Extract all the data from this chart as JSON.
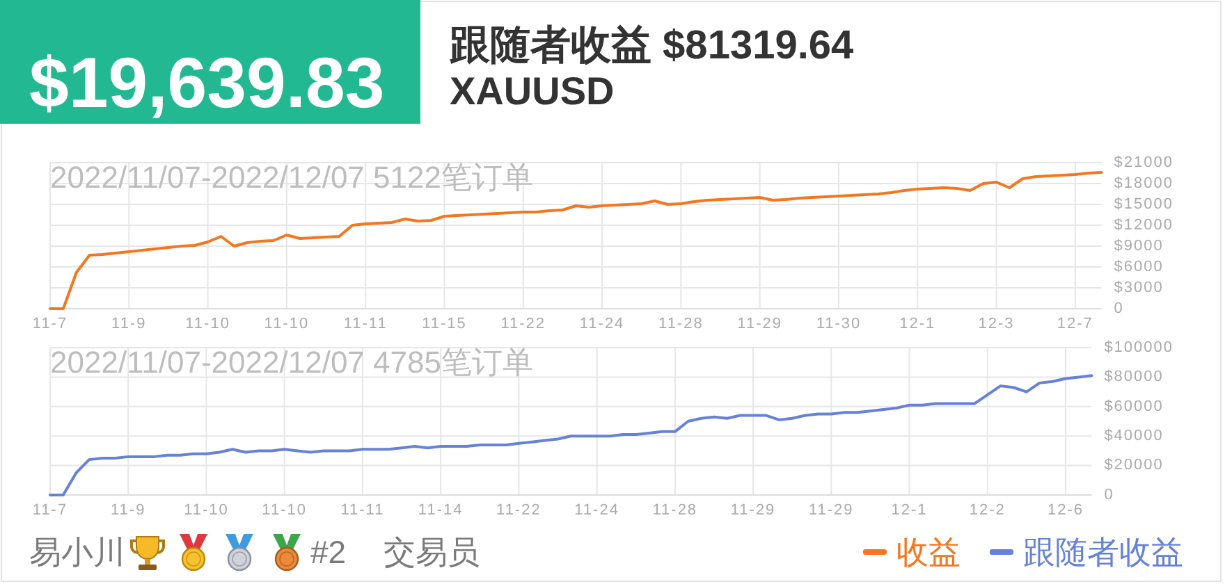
{
  "chart_data": [
    {
      "type": "other",
      "title": "$19,639.83",
      "subtitle": "跟随者收益 $81319.64",
      "annotations": [
        "XAUUSD"
      ]
    },
    {
      "type": "line",
      "title": "2022/11/07-2022/12/07 5122笔订单",
      "categories": [
        "11-7",
        null,
        null,
        null,
        null,
        null,
        "11-9",
        null,
        null,
        null,
        null,
        null,
        "11-10",
        null,
        null,
        null,
        null,
        null,
        "11-10",
        null,
        null,
        null,
        null,
        null,
        "11-11",
        null,
        null,
        null,
        null,
        null,
        "11-15",
        null,
        null,
        null,
        null,
        null,
        "11-22",
        null,
        null,
        null,
        null,
        null,
        "11-24",
        null,
        null,
        null,
        null,
        null,
        "11-28",
        null,
        null,
        null,
        null,
        null,
        "11-29",
        null,
        null,
        null,
        null,
        null,
        "11-30",
        null,
        null,
        null,
        null,
        null,
        "12-1",
        null,
        null,
        null,
        null,
        null,
        "12-3",
        null,
        null,
        null,
        null,
        null,
        "12-7",
        null,
        null
      ],
      "series": [
        {
          "name": "收益",
          "color": "#f4761f",
          "values": [
            0,
            0,
            5200,
            7700,
            7800,
            8000,
            8200,
            8400,
            8600,
            8800,
            9000,
            9100,
            9600,
            10400,
            9000,
            9500,
            9700,
            9800,
            10600,
            10100,
            10200,
            10300,
            10400,
            12000,
            12200,
            12300,
            12400,
            12900,
            12600,
            12700,
            13300,
            13400,
            13500,
            13600,
            13700,
            13800,
            13900,
            13900,
            14100,
            14200,
            14800,
            14600,
            14800,
            14900,
            15000,
            15100,
            15500,
            15000,
            15100,
            15400,
            15600,
            15700,
            15800,
            15900,
            16000,
            15600,
            15700,
            15900,
            16000,
            16100,
            16200,
            16300,
            16400,
            16500,
            16700,
            17000,
            17200,
            17300,
            17400,
            17300,
            17000,
            18000,
            18200,
            17400,
            18700,
            19000,
            19100,
            19200,
            19300,
            19500,
            19600
          ]
        }
      ],
      "ylim": [
        0,
        21000
      ],
      "yticks": [
        0,
        {
          "value": 3000,
          "label": "$3000"
        },
        {
          "value": 6000,
          "label": "$6000"
        },
        {
          "value": 9000,
          "label": "$9000"
        },
        {
          "value": 12000,
          "label": "$12000"
        },
        {
          "value": 15000,
          "label": "$15000"
        },
        {
          "value": 18000,
          "label": "$18000"
        },
        {
          "value": 21000,
          "label": "$21000"
        }
      ],
      "grid": true,
      "legend": "bottom right"
    },
    {
      "type": "line",
      "title": "2022/11/07-2022/12/07 4785笔订单",
      "categories": [
        "11-7",
        null,
        null,
        null,
        null,
        null,
        "11-9",
        null,
        null,
        null,
        null,
        null,
        "11-10",
        null,
        null,
        null,
        null,
        null,
        "11-10",
        null,
        null,
        null,
        null,
        null,
        "11-11",
        null,
        null,
        null,
        null,
        null,
        "11-14",
        null,
        null,
        null,
        null,
        null,
        "11-22",
        null,
        null,
        null,
        null,
        null,
        "11-24",
        null,
        null,
        null,
        null,
        null,
        "11-28",
        null,
        null,
        null,
        null,
        null,
        "11-29",
        null,
        null,
        null,
        null,
        null,
        "11-29",
        null,
        null,
        null,
        null,
        null,
        "12-1",
        null,
        null,
        null,
        null,
        null,
        "12-2",
        null,
        null,
        null,
        null,
        null,
        "12-6",
        null,
        null
      ],
      "series": [
        {
          "name": "跟随者收益",
          "color": "#6581d8",
          "values": [
            0,
            0,
            15000,
            24000,
            25000,
            25000,
            26000,
            26000,
            26000,
            27000,
            27000,
            28000,
            28000,
            29000,
            31000,
            29000,
            30000,
            30000,
            31000,
            30000,
            29000,
            30000,
            30000,
            30000,
            31000,
            31000,
            31000,
            32000,
            33000,
            32000,
            33000,
            33000,
            33000,
            34000,
            34000,
            34000,
            35000,
            36000,
            37000,
            38000,
            40000,
            40000,
            40000,
            40000,
            41000,
            41000,
            42000,
            43000,
            43000,
            50000,
            52000,
            53000,
            52000,
            54000,
            54000,
            54000,
            51000,
            52000,
            54000,
            55000,
            55000,
            56000,
            56000,
            57000,
            58000,
            59000,
            61000,
            61000,
            62000,
            62000,
            62000,
            62000,
            68000,
            74000,
            73000,
            70000,
            76000,
            77000,
            79000,
            80000,
            81000
          ]
        }
      ],
      "ylim": [
        0,
        100000
      ],
      "yticks": [
        0,
        {
          "value": 20000,
          "label": "$20000"
        },
        {
          "value": 40000,
          "label": "$40000"
        },
        {
          "value": 60000,
          "label": "$60000"
        },
        {
          "value": 80000,
          "label": "$80000"
        },
        {
          "value": 100000,
          "label": "$100000"
        }
      ],
      "grid": true,
      "legend": "bottom right"
    },
    {
      "type": "other",
      "annotations": [
        "易小川",
        "#2",
        "交易员"
      ]
    }
  ]
}
